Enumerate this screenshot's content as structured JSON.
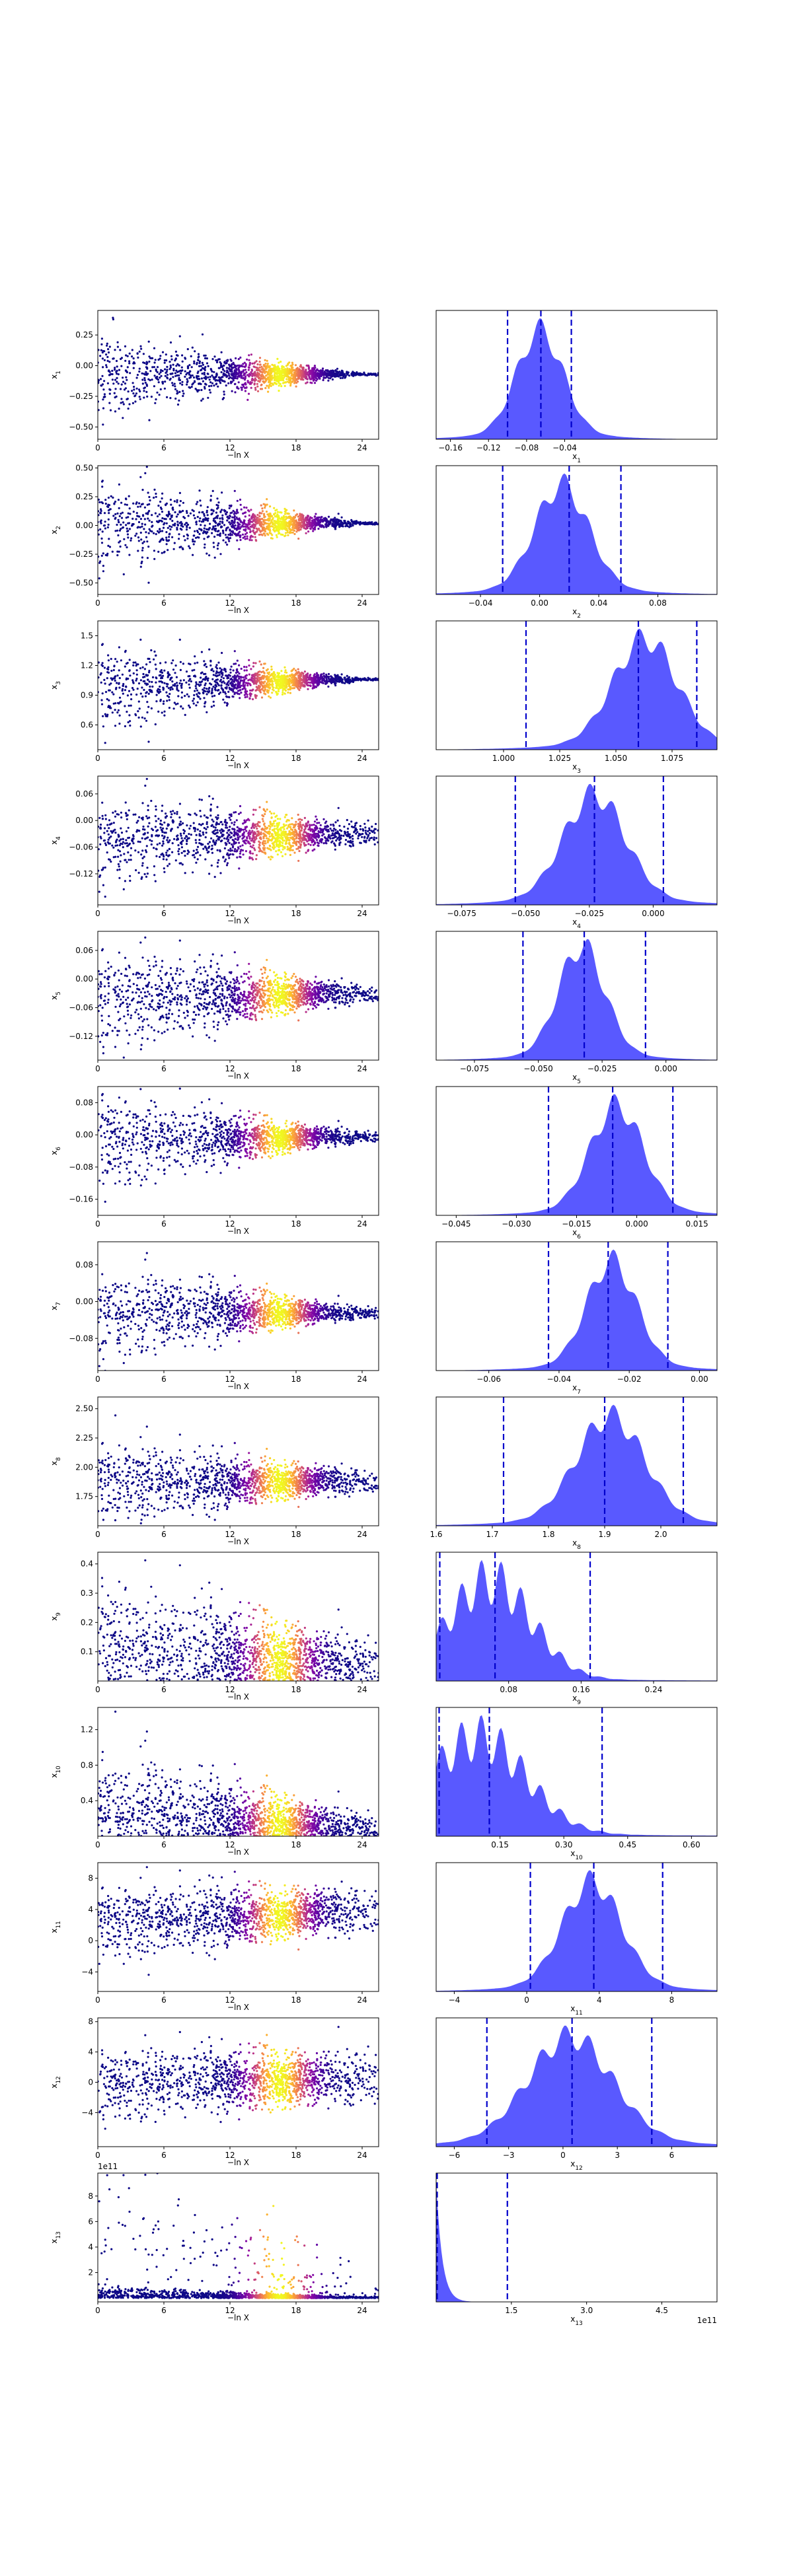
{
  "chart_data": [
    {
      "type": "scatter",
      "param": "x_1",
      "ylabel_base": "x",
      "ylabel_sub": "1",
      "xlabel": "−ln X",
      "xlim": [
        0,
        25.5
      ],
      "xticks": [
        0,
        6,
        12,
        18,
        24
      ],
      "ylim": [
        -0.6,
        0.45
      ],
      "yticks": [
        -0.5,
        -0.25,
        0.0,
        0.25
      ],
      "yticklabels": [
        "−0.50",
        "−0.25",
        "0.00",
        "0.25"
      ],
      "spread_start": 0.32,
      "spread_end": 0.01,
      "center_start": -0.08,
      "center_end": -0.07,
      "exponent": ""
    },
    {
      "type": "scatter",
      "param": "x_2",
      "ylabel_base": "x",
      "ylabel_sub": "2",
      "xlabel": "−ln X",
      "xlim": [
        0,
        25.5
      ],
      "xticks": [
        0,
        6,
        12,
        18,
        24
      ],
      "ylim": [
        -0.6,
        0.52
      ],
      "yticks": [
        -0.5,
        -0.25,
        0.0,
        0.25,
        0.5
      ],
      "yticklabels": [
        "−0.50",
        "−0.25",
        "0.00",
        "0.25",
        "0.50"
      ],
      "spread_start": 0.4,
      "spread_end": 0.01,
      "center_start": 0.02,
      "center_end": 0.02,
      "exponent": ""
    },
    {
      "type": "scatter",
      "param": "x_3",
      "ylabel_base": "x",
      "ylabel_sub": "3",
      "xlabel": "−ln X",
      "xlim": [
        0,
        25.5
      ],
      "xticks": [
        0,
        6,
        12,
        18,
        24
      ],
      "ylim": [
        0.35,
        1.65
      ],
      "yticks": [
        0.6,
        0.9,
        1.2,
        1.5
      ],
      "yticklabels": [
        "0.6",
        "0.9",
        "1.2",
        "1.5"
      ],
      "spread_start": 0.45,
      "spread_end": 0.01,
      "center_start": 1.0,
      "center_end": 1.06,
      "exponent": ""
    },
    {
      "type": "scatter",
      "param": "x_4",
      "ylabel_base": "x",
      "ylabel_sub": "4",
      "xlabel": "−ln X",
      "xlim": [
        0,
        25.5
      ],
      "xticks": [
        0,
        6,
        12,
        18,
        24
      ],
      "ylim": [
        -0.19,
        0.1
      ],
      "yticks": [
        -0.12,
        -0.06,
        0.0,
        0.06
      ],
      "yticklabels": [
        "−0.12",
        "−0.06",
        "0.00",
        "0.06"
      ],
      "spread_start": 0.1,
      "spread_end": 0.02,
      "center_start": -0.04,
      "center_end": -0.03,
      "exponent": ""
    },
    {
      "type": "scatter",
      "param": "x_5",
      "ylabel_base": "x",
      "ylabel_sub": "5",
      "xlabel": "−ln X",
      "xlim": [
        0,
        25.5
      ],
      "xticks": [
        0,
        6,
        12,
        18,
        24
      ],
      "ylim": [
        -0.17,
        0.1
      ],
      "yticks": [
        -0.12,
        -0.06,
        0.0,
        0.06
      ],
      "yticklabels": [
        "−0.12",
        "−0.06",
        "0.00",
        "0.06"
      ],
      "spread_start": 0.11,
      "spread_end": 0.015,
      "center_start": -0.04,
      "center_end": -0.03,
      "exponent": ""
    },
    {
      "type": "scatter",
      "param": "x_6",
      "ylabel_base": "x",
      "ylabel_sub": "6",
      "xlabel": "−ln X",
      "xlim": [
        0,
        25.5
      ],
      "xticks": [
        0,
        6,
        12,
        18,
        24
      ],
      "ylim": [
        -0.2,
        0.12
      ],
      "yticks": [
        -0.16,
        -0.08,
        0.0,
        0.08
      ],
      "yticklabels": [
        "−0.16",
        "−0.08",
        "0.00",
        "0.08"
      ],
      "spread_start": 0.12,
      "spread_end": 0.01,
      "center_start": -0.01,
      "center_end": -0.005,
      "exponent": ""
    },
    {
      "type": "scatter",
      "param": "x_7",
      "ylabel_base": "x",
      "ylabel_sub": "7",
      "xlabel": "−ln X",
      "xlim": [
        0,
        25.5
      ],
      "xticks": [
        0,
        6,
        12,
        18,
        24
      ],
      "ylim": [
        -0.15,
        0.13
      ],
      "yticks": [
        -0.08,
        0.0,
        0.08
      ],
      "yticklabels": [
        "−0.08",
        "0.00",
        "0.08"
      ],
      "spread_start": 0.1,
      "spread_end": 0.01,
      "center_start": -0.02,
      "center_end": -0.025,
      "exponent": ""
    },
    {
      "type": "scatter",
      "param": "x_8",
      "ylabel_base": "x",
      "ylabel_sub": "8",
      "xlabel": "−ln X",
      "xlim": [
        0,
        25.5
      ],
      "xticks": [
        0,
        6,
        12,
        18,
        24
      ],
      "ylim": [
        1.5,
        2.6
      ],
      "yticks": [
        1.75,
        2.0,
        2.25,
        2.5
      ],
      "yticklabels": [
        "1.75",
        "2.00",
        "2.25",
        "2.50"
      ],
      "spread_start": 0.35,
      "spread_end": 0.08,
      "center_start": 1.88,
      "center_end": 1.88,
      "exponent": ""
    },
    {
      "type": "scatter",
      "param": "x_9",
      "ylabel_base": "x",
      "ylabel_sub": "9",
      "xlabel": "−ln X",
      "xlim": [
        0,
        25.5
      ],
      "xticks": [
        0,
        6,
        12,
        18,
        24
      ],
      "ylim": [
        0.0,
        0.44
      ],
      "yticks": [
        0.1,
        0.2,
        0.3,
        0.4
      ],
      "yticklabels": [
        "0.1",
        "0.2",
        "0.3",
        "0.4"
      ],
      "spread_start": 0.2,
      "spread_end": 0.05,
      "center_start": 0.12,
      "center_end": 0.06,
      "exponent": "",
      "floor": 0.005
    },
    {
      "type": "scatter",
      "param": "x_10",
      "ylabel_base": "x",
      "ylabel_sub": "10",
      "xlabel": "−ln X",
      "xlim": [
        0,
        25.5
      ],
      "xticks": [
        0,
        6,
        12,
        18,
        24
      ],
      "ylim": [
        0.0,
        1.45
      ],
      "yticks": [
        0.4,
        0.8,
        1.2
      ],
      "yticklabels": [
        "0.4",
        "0.8",
        "1.2"
      ],
      "spread_start": 0.55,
      "spread_end": 0.1,
      "center_start": 0.3,
      "center_end": 0.1,
      "exponent": "",
      "floor": 0.005
    },
    {
      "type": "scatter",
      "param": "x_11",
      "ylabel_base": "x",
      "ylabel_sub": "11",
      "xlabel": "−ln X",
      "xlim": [
        0,
        25.5
      ],
      "xticks": [
        0,
        6,
        12,
        18,
        24
      ],
      "ylim": [
        -6.5,
        10.0
      ],
      "yticks": [
        -4,
        0,
        4,
        8
      ],
      "yticklabels": [
        "−4",
        "0",
        "4",
        "8"
      ],
      "spread_start": 4.5,
      "spread_end": 2.3,
      "center_start": 2.5,
      "center_end": 3.8,
      "exponent": ""
    },
    {
      "type": "scatter",
      "param": "x_12",
      "ylabel_base": "x",
      "ylabel_sub": "12",
      "xlabel": "−ln X",
      "xlim": [
        0,
        25.5
      ],
      "xticks": [
        0,
        6,
        12,
        18,
        24
      ],
      "ylim": [
        -8.5,
        8.5
      ],
      "yticks": [
        -4,
        0,
        4,
        8
      ],
      "yticklabels": [
        "−4",
        "0",
        "4",
        "8"
      ],
      "spread_start": 4.5,
      "spread_end": 2.8,
      "center_start": 0.0,
      "center_end": 0.5,
      "exponent": ""
    },
    {
      "type": "scatter",
      "param": "x_13",
      "ylabel_base": "x",
      "ylabel_sub": "13",
      "xlabel": "−ln X",
      "xlim": [
        0,
        25.5
      ],
      "xticks": [
        0,
        6,
        12,
        18,
        24
      ],
      "ylim": [
        -0.3,
        9.8
      ],
      "yticks": [
        2,
        4,
        6,
        8
      ],
      "yticklabels": [
        "2",
        "4",
        "6",
        "8"
      ],
      "spread_start": 3.0,
      "spread_end": 0.3,
      "center_start": 0.2,
      "center_end": 0.05,
      "exponent": "1e11",
      "floor": 0.0,
      "heavy_tail": true
    }
  ],
  "posteriors": [
    {
      "type": "area",
      "param": "x_1",
      "xlabel_base": "x",
      "xlabel_sub": "1",
      "xlim": [
        -0.175,
        0.12
      ],
      "xticks": [
        -0.16,
        -0.12,
        -0.08,
        -0.04
      ],
      "xticklabels": [
        "−0.16",
        "−0.12",
        "−0.08",
        "−0.04"
      ],
      "mean": -0.066,
      "sd": 0.024,
      "vlines": [
        -0.1,
        -0.065,
        -0.033
      ],
      "exponent": ""
    },
    {
      "type": "area",
      "param": "x_2",
      "xlabel_base": "x",
      "xlabel_sub": "2",
      "xlim": [
        -0.07,
        0.12
      ],
      "xticks": [
        -0.04,
        0.0,
        0.04,
        0.08
      ],
      "xticklabels": [
        "−0.04",
        "0.00",
        "0.04",
        "0.08"
      ],
      "mean": 0.015,
      "sd": 0.018,
      "vlines": [
        -0.025,
        0.02,
        0.055
      ],
      "exponent": ""
    },
    {
      "type": "area",
      "param": "x_3",
      "xlabel_base": "x",
      "xlabel_sub": "3",
      "xlim": [
        0.97,
        1.095
      ],
      "xticks": [
        1.0,
        1.025,
        1.05,
        1.075
      ],
      "xticklabels": [
        "1.000",
        "1.025",
        "1.050",
        "1.075"
      ],
      "mean": 1.063,
      "sd": 0.014,
      "vlines": [
        1.01,
        1.06,
        1.086
      ],
      "exponent": ""
    },
    {
      "type": "area",
      "param": "x_4",
      "xlabel_base": "x",
      "xlabel_sub": "4",
      "xlim": [
        -0.085,
        0.025
      ],
      "xticks": [
        -0.075,
        -0.05,
        -0.025,
        0.0
      ],
      "xticklabels": [
        "−0.075",
        "−0.050",
        "−0.025",
        "0.000"
      ],
      "mean": -0.023,
      "sd": 0.012,
      "vlines": [
        -0.054,
        -0.023,
        0.004
      ],
      "exponent": ""
    },
    {
      "type": "area",
      "param": "x_5",
      "xlabel_base": "x",
      "xlabel_sub": "5",
      "xlim": [
        -0.09,
        0.02
      ],
      "xticks": [
        -0.075,
        -0.05,
        -0.025,
        0.0
      ],
      "xticklabels": [
        "−0.075",
        "−0.050",
        "−0.025",
        "0.000"
      ],
      "mean": -0.033,
      "sd": 0.009,
      "vlines": [
        -0.056,
        -0.032,
        -0.008
      ],
      "exponent": ""
    },
    {
      "type": "area",
      "param": "x_6",
      "xlabel_base": "x",
      "xlabel_sub": "6",
      "xlim": [
        -0.05,
        0.02
      ],
      "xticks": [
        -0.045,
        -0.03,
        -0.015,
        0.0,
        0.015
      ],
      "xticklabels": [
        "−0.045",
        "−0.030",
        "−0.015",
        "0.000",
        "0.015"
      ],
      "mean": -0.005,
      "sd": 0.0065,
      "vlines": [
        -0.022,
        -0.006,
        0.009
      ],
      "exponent": ""
    },
    {
      "type": "area",
      "param": "x_7",
      "xlabel_base": "x",
      "xlabel_sub": "7",
      "xlim": [
        -0.075,
        0.005
      ],
      "xticks": [
        -0.06,
        -0.04,
        -0.02,
        0.0
      ],
      "xticklabels": [
        "−0.06",
        "−0.04",
        "−0.02",
        "0.00"
      ],
      "mean": -0.025,
      "sd": 0.007,
      "vlines": [
        -0.043,
        -0.026,
        -0.009
      ],
      "exponent": ""
    },
    {
      "type": "area",
      "param": "x_8",
      "xlabel_base": "x",
      "xlabel_sub": "8",
      "xlim": [
        1.6,
        2.1
      ],
      "xticks": [
        1.6,
        1.7,
        1.8,
        1.9,
        2.0
      ],
      "xticklabels": [
        "1.6",
        "1.7",
        "1.8",
        "1.9",
        "2.0"
      ],
      "mean": 1.91,
      "sd": 0.06,
      "vlines": [
        1.72,
        1.9,
        2.04
      ],
      "exponent": ""
    },
    {
      "type": "area",
      "param": "x_9",
      "xlabel_base": "x",
      "xlabel_sub": "9",
      "xlim": [
        0.0,
        0.31
      ],
      "xticks": [
        0.08,
        0.16,
        0.24
      ],
      "xticklabels": [
        "0.08",
        "0.16",
        "0.24"
      ],
      "mean": 0.06,
      "sd": 0.045,
      "vlines": [
        0.004,
        0.065,
        0.17
      ],
      "exponent": "",
      "floor": 0.0
    },
    {
      "type": "area",
      "param": "x_10",
      "xlabel_base": "x",
      "xlabel_sub": "10",
      "xlim": [
        0.0,
        0.66
      ],
      "xticks": [
        0.15,
        0.3,
        0.45,
        0.6
      ],
      "xticklabels": [
        "0.15",
        "0.30",
        "0.45",
        "0.60"
      ],
      "mean": 0.1,
      "sd": 0.11,
      "vlines": [
        0.007,
        0.125,
        0.39
      ],
      "exponent": "",
      "floor": 0.0
    },
    {
      "type": "area",
      "param": "x_11",
      "xlabel_base": "x",
      "xlabel_sub": "11",
      "xlim": [
        -5.0,
        10.5
      ],
      "xticks": [
        -4,
        0,
        4,
        8
      ],
      "xticklabels": [
        "−4",
        "0",
        "4",
        "8"
      ],
      "mean": 3.6,
      "sd": 1.6,
      "vlines": [
        0.2,
        3.7,
        7.5
      ],
      "exponent": ""
    },
    {
      "type": "area",
      "param": "x_12",
      "xlabel_base": "x",
      "xlabel_sub": "12",
      "xlim": [
        -7.0,
        8.5
      ],
      "xticks": [
        -6,
        -3,
        0,
        3,
        6
      ],
      "xticklabels": [
        "−6",
        "−3",
        "0",
        "3",
        "6"
      ],
      "mean": 0.4,
      "sd": 2.3,
      "vlines": [
        -4.2,
        0.5,
        4.9
      ],
      "exponent": ""
    },
    {
      "type": "area",
      "param": "x_13",
      "xlabel_base": "x",
      "xlabel_sub": "13",
      "xlim": [
        0.0,
        5.6
      ],
      "xticks": [
        1.5,
        3.0,
        4.5
      ],
      "xticklabels": [
        "1.5",
        "3.0",
        "4.5"
      ],
      "mean": 0.0,
      "sd": 0.2,
      "vlines": [
        0.02,
        1.42
      ],
      "exponent": "1e11",
      "floor": 0.0,
      "heavy_tail": true
    }
  ],
  "style": {
    "fill_color": "#0000ff",
    "fill_opacity": 0.65,
    "vline_color": "#0000cc",
    "colormap": "plasma"
  }
}
